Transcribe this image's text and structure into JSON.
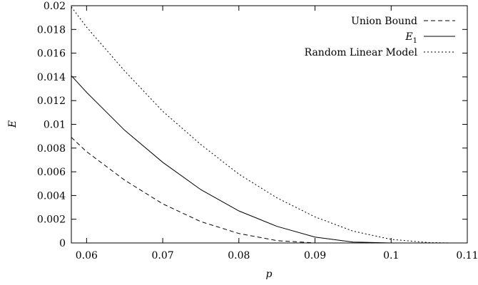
{
  "chart_data": {
    "type": "line",
    "title": "",
    "xlabel": "p",
    "ylabel": "E",
    "xlim": [
      0.058,
      0.11
    ],
    "ylim": [
      0,
      0.02
    ],
    "x_ticks": [
      "0.06",
      "0.07",
      "0.08",
      "0.09",
      "0.1",
      "0.11"
    ],
    "y_ticks": [
      "0",
      "0.002",
      "0.004",
      "0.006",
      "0.008",
      "0.01",
      "0.012",
      "0.014",
      "0.016",
      "0.018",
      "0.02"
    ],
    "grid": false,
    "legend_position": "top-right",
    "series": [
      {
        "name": "Union Bound",
        "dash": "dashed",
        "x": [
          0.058,
          0.06,
          0.065,
          0.07,
          0.075,
          0.08,
          0.085,
          0.09
        ],
        "y": [
          0.0089,
          0.0077,
          0.0053,
          0.0033,
          0.0018,
          0.0008,
          0.0002,
          0.0
        ]
      },
      {
        "name": "E",
        "name_subscript": "1",
        "dash": "solid",
        "x": [
          0.058,
          0.06,
          0.065,
          0.07,
          0.075,
          0.08,
          0.085,
          0.09,
          0.095,
          0.1
        ],
        "y": [
          0.0141,
          0.0127,
          0.0095,
          0.0068,
          0.0045,
          0.0027,
          0.0014,
          0.0005,
          8e-05,
          0.0
        ]
      },
      {
        "name": "Random Linear Model",
        "dash": "dotted",
        "x": [
          0.058,
          0.06,
          0.065,
          0.07,
          0.075,
          0.08,
          0.085,
          0.09,
          0.095,
          0.1,
          0.105,
          0.108
        ],
        "y": [
          0.0199,
          0.0182,
          0.0145,
          0.0111,
          0.0083,
          0.0058,
          0.0038,
          0.0022,
          0.001,
          0.0003,
          3e-05,
          0.0
        ]
      }
    ]
  }
}
